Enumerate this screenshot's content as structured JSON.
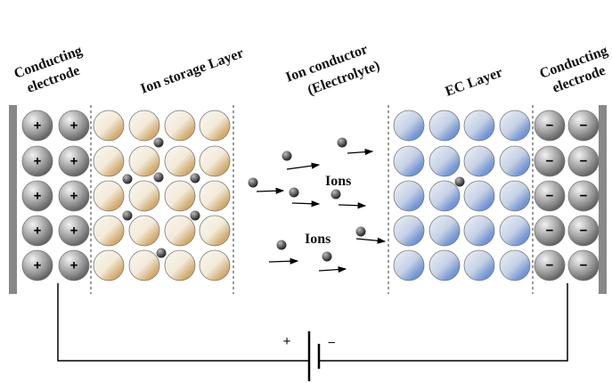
{
  "labels": {
    "left_electrode": [
      "Conducting",
      "electrode"
    ],
    "ion_storage": "Ion storage Layer",
    "ion_conductor": [
      "Ion conductor",
      "(Electrolyte)"
    ],
    "ec_layer": "EC Layer",
    "right_electrode": [
      "Conducting",
      "electrode"
    ],
    "ions_upper": "Ions",
    "ions_lower": "Ions"
  },
  "signs": {
    "plus": "+",
    "minus": "−"
  },
  "battery": {
    "plus": "+",
    "minus": "−"
  }
}
